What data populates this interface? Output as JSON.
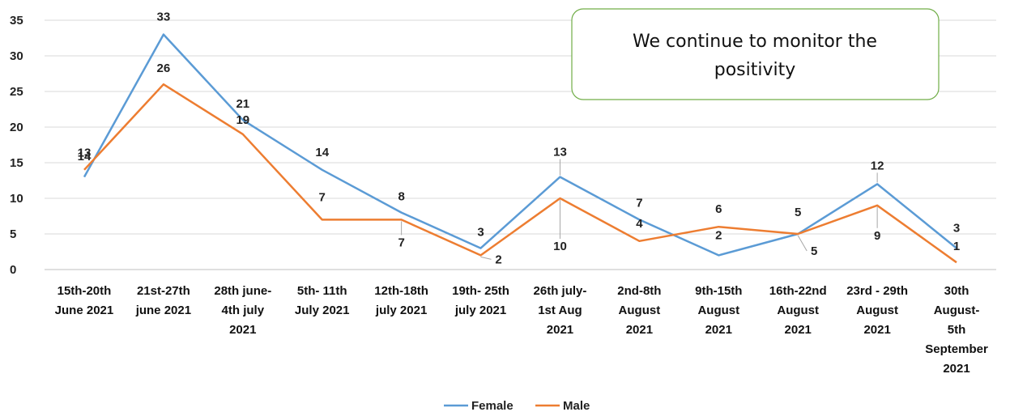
{
  "chart_data": {
    "type": "line",
    "categories": [
      [
        "15th-20th",
        "June 2021"
      ],
      [
        "21st-27th",
        "june 2021"
      ],
      [
        "28th june-",
        "4th july",
        "2021"
      ],
      [
        "5th- 11th",
        "July 2021"
      ],
      [
        "12th-18th",
        "july 2021"
      ],
      [
        "19th- 25th",
        "july 2021"
      ],
      [
        "26th july-",
        "1st Aug",
        "2021"
      ],
      [
        "2nd-8th",
        "August",
        "2021"
      ],
      [
        "9th-15th",
        "August",
        "2021"
      ],
      [
        "16th-22nd",
        "August",
        "2021"
      ],
      [
        "23rd - 29th",
        "August",
        "2021"
      ],
      [
        "30th",
        "August-",
        "5th",
        "September",
        "2021"
      ]
    ],
    "series": [
      {
        "name": "Female",
        "color": "#5b9bd5",
        "values": [
          13,
          33,
          21,
          14,
          8,
          3,
          13,
          7,
          2,
          5,
          12,
          3
        ]
      },
      {
        "name": "Male",
        "color": "#ed7d31",
        "values": [
          14,
          26,
          19,
          7,
          7,
          2,
          10,
          4,
          6,
          5,
          9,
          1
        ]
      }
    ],
    "ylim": [
      0,
      35
    ],
    "yticks": [
      0,
      5,
      10,
      15,
      20,
      25,
      30,
      35
    ],
    "grid": true,
    "legend": "bottom",
    "title": "",
    "xlabel": "",
    "ylabel": ""
  },
  "callout": {
    "lines": [
      "We continue to monitor the",
      "positivity"
    ],
    "border_color": "#70ad47"
  }
}
